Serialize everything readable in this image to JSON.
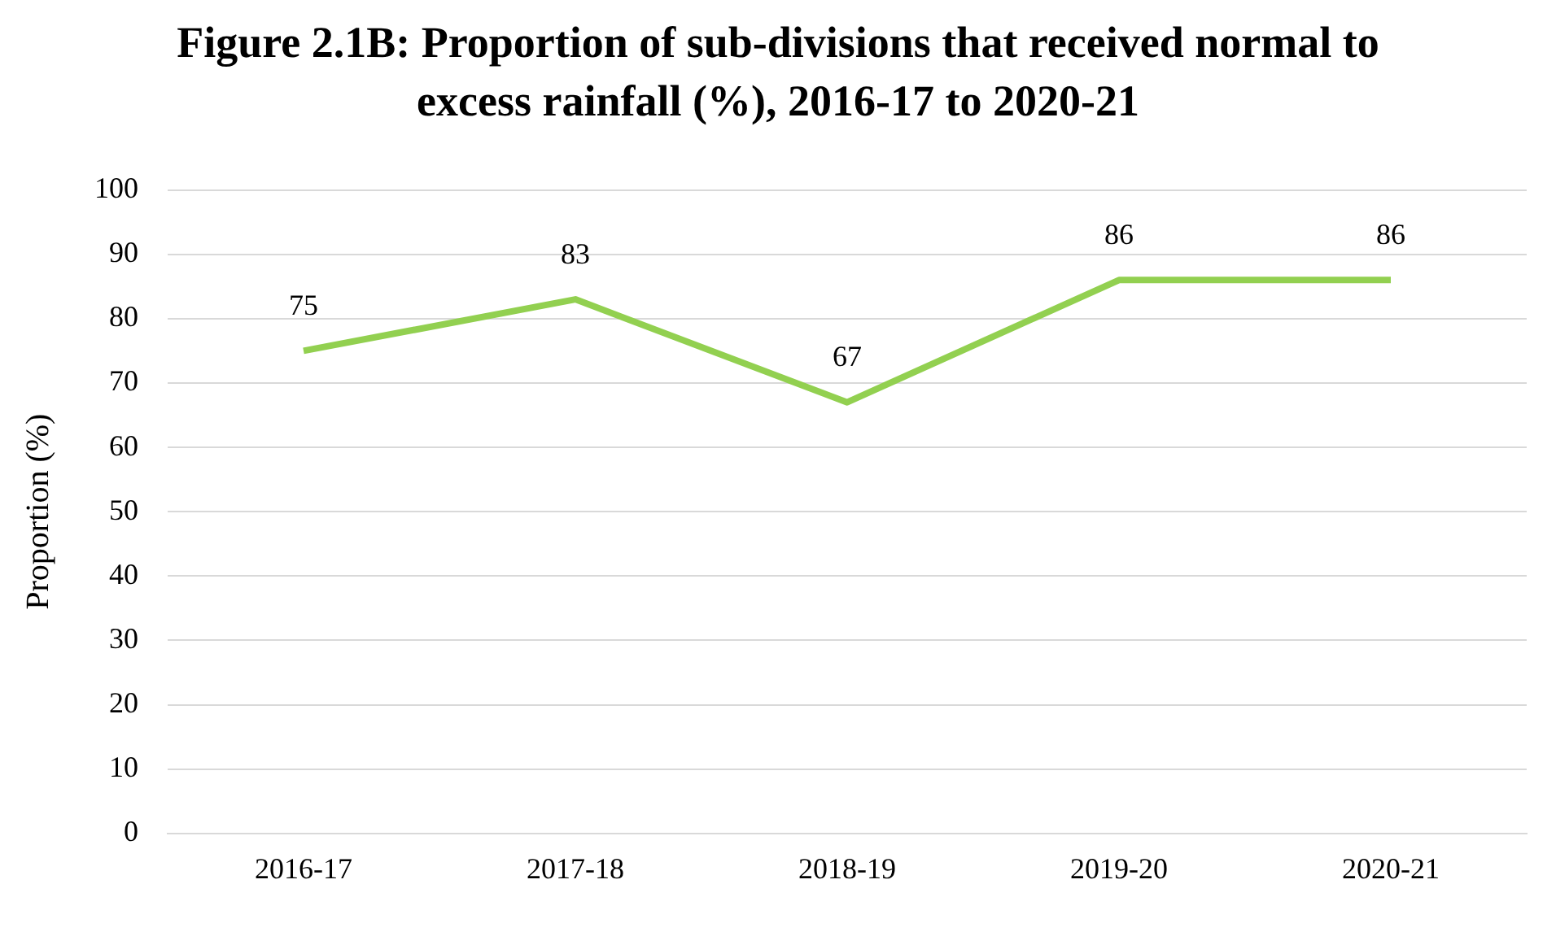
{
  "chart_data": {
    "type": "line",
    "title": "Figure 2.1B: Proportion of sub-divisions that received normal to excess rainfall (%), 2016-17 to 2020-21",
    "ylabel": "Proportion (%)",
    "categories": [
      "2016-17",
      "2017-18",
      "2018-19",
      "2019-20",
      "2020-21"
    ],
    "series": [
      {
        "color": "#92d050",
        "values": [
          75,
          83,
          67,
          86,
          86
        ]
      }
    ],
    "ylim": [
      0,
      100
    ],
    "yticks": [
      0,
      10,
      20,
      30,
      40,
      50,
      60,
      70,
      80,
      90,
      100
    ],
    "grid": "y",
    "legend": false,
    "marker": "none",
    "line_style": "solid",
    "data_labels": true
  }
}
